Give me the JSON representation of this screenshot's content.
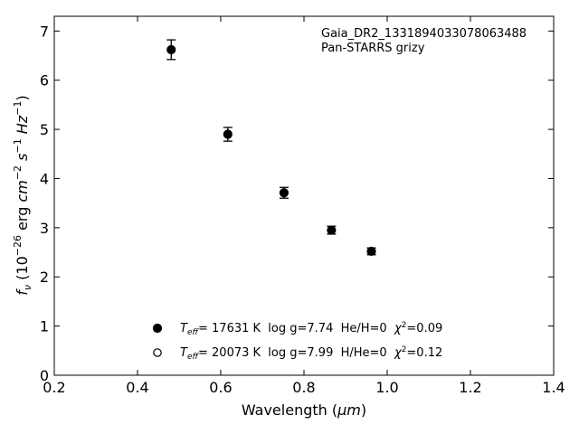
{
  "chart_data": {
    "type": "scatter",
    "xlabel": "Wavelength (",
    "xlabel_unit": "μm",
    "xlabel_close": ")",
    "ylabel": {
      "prefix": "f",
      "sub": "ν",
      "open": " (10",
      "exp1": "−26",
      "erg": " erg ",
      "cm": "cm",
      "exp2": "−2",
      "s": "s",
      "exp3": "−1",
      "hz": "Hz",
      "exp4": "−1",
      "close": ")"
    },
    "xlim": [
      0.2,
      1.4
    ],
    "ylim": [
      0,
      7.3
    ],
    "xticks": [
      "0.2",
      "0.4",
      "0.6",
      "0.8",
      "1.0",
      "1.2",
      "1.4"
    ],
    "yticks": [
      "0",
      "1",
      "2",
      "3",
      "4",
      "5",
      "6",
      "7"
    ],
    "grid": false,
    "annotation_lines": [
      "Gaia_DR2_1331894033078063488",
      "Pan-STARRS grizy"
    ],
    "series": [
      {
        "marker": "filled-circle",
        "x": [
          0.481,
          0.617,
          0.752,
          0.866,
          0.962
        ],
        "y": [
          6.62,
          4.9,
          3.71,
          2.95,
          2.52
        ],
        "yerr": [
          0.2,
          0.14,
          0.11,
          0.08,
          0.07
        ]
      }
    ],
    "legend": {
      "placement": "lower-center",
      "entries": [
        {
          "marker": "filled-circle",
          "teff_sym": "T",
          "teff_sub": "eff",
          "text_a": "= 17631 K  log g=7.74  He/H=0  ",
          "chi_sym": "χ",
          "chi_sup": "2",
          "text_b": "=0.09"
        },
        {
          "marker": "open-circle",
          "teff_sym": "T",
          "teff_sub": "eff",
          "text_a": "= 20073 K  log g=7.99  H/He=0  ",
          "chi_sym": "χ",
          "chi_sup": "2",
          "text_b": "=0.12"
        }
      ]
    }
  }
}
